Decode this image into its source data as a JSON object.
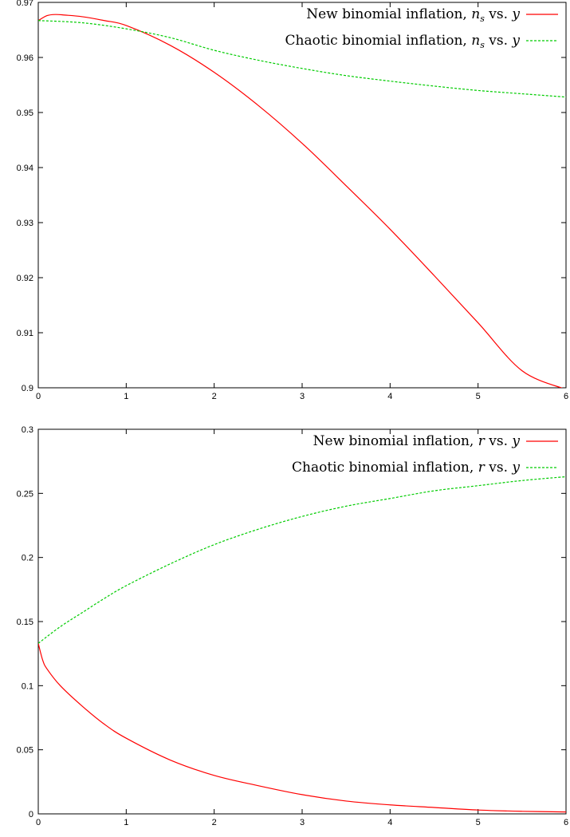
{
  "chart_data": [
    {
      "type": "line",
      "xlim": [
        0,
        6
      ],
      "ylim": [
        0.9,
        0.97
      ],
      "xticks": [
        "0",
        "1",
        "2",
        "3",
        "4",
        "5",
        "6"
      ],
      "yticks": [
        "0.9",
        "0.91",
        "0.92",
        "0.93",
        "0.94",
        "0.95",
        "0.96",
        "0.97"
      ],
      "grid": false,
      "legend_position": "top-right",
      "series": [
        {
          "name": "New binomial inflation, n_s vs. y",
          "legend_parts": [
            "New binomial inflation, ",
            "n",
            "s",
            " vs. ",
            "y"
          ],
          "color": "#ff0000",
          "style": "solid",
          "x": [
            0,
            0.1,
            0.2,
            0.3,
            0.5,
            0.75,
            1,
            1.5,
            2,
            2.5,
            3,
            3.5,
            4,
            4.5,
            5,
            5.5,
            6
          ],
          "y": [
            0.9667,
            0.9676,
            0.9678,
            0.9677,
            0.9674,
            0.9667,
            0.9658,
            0.9622,
            0.9573,
            0.9513,
            0.9444,
            0.9367,
            0.9288,
            0.9204,
            0.9118,
            0.9031,
            0.8997
          ]
        },
        {
          "name": "Chaotic binomial inflation, n_s vs. y",
          "legend_parts": [
            "Chaotic binomial inflation, ",
            "n",
            "s",
            " vs. ",
            "y"
          ],
          "color": "#00cc00",
          "style": "dashed",
          "x": [
            0,
            0.5,
            1,
            1.5,
            2,
            2.5,
            3,
            3.5,
            4,
            4.5,
            5,
            5.5,
            6
          ],
          "y": [
            0.9667,
            0.9663,
            0.9652,
            0.9636,
            0.9613,
            0.9595,
            0.958,
            0.9567,
            0.9557,
            0.9548,
            0.954,
            0.9534,
            0.9528
          ]
        }
      ]
    },
    {
      "type": "line",
      "xlim": [
        0,
        6
      ],
      "ylim": [
        0,
        0.3
      ],
      "xticks": [
        "0",
        "1",
        "2",
        "3",
        "4",
        "5",
        "6"
      ],
      "yticks": [
        "0",
        "0.05",
        "0.1",
        "0.15",
        "0.2",
        "0.25",
        "0.3"
      ],
      "grid": false,
      "legend_position": "top-right",
      "series": [
        {
          "name": "New binomial inflation, r vs. y",
          "legend_parts": [
            "New binomial inflation, ",
            "r",
            "",
            " vs. ",
            "y"
          ],
          "color": "#ff0000",
          "style": "solid",
          "x": [
            0,
            0.05,
            0.1,
            0.25,
            0.5,
            0.75,
            1,
            1.5,
            2,
            2.5,
            3,
            3.5,
            4,
            4.5,
            5,
            5.5,
            6
          ],
          "y": [
            0.133,
            0.12,
            0.113,
            0.1,
            0.084,
            0.07,
            0.059,
            0.042,
            0.03,
            0.022,
            0.015,
            0.01,
            0.007,
            0.005,
            0.003,
            0.002,
            0.0015
          ]
        },
        {
          "name": "Chaotic binomial inflation, r vs. y",
          "legend_parts": [
            "Chaotic binomial inflation, ",
            "r",
            "",
            " vs. ",
            "y"
          ],
          "color": "#00cc00",
          "style": "dashed",
          "x": [
            0,
            0.25,
            0.5,
            0.75,
            1,
            1.5,
            2,
            2.5,
            3,
            3.5,
            4,
            4.5,
            5,
            5.5,
            6
          ],
          "y": [
            0.133,
            0.146,
            0.157,
            0.168,
            0.178,
            0.195,
            0.21,
            0.222,
            0.232,
            0.24,
            0.246,
            0.252,
            0.256,
            0.26,
            0.263
          ]
        }
      ]
    }
  ]
}
